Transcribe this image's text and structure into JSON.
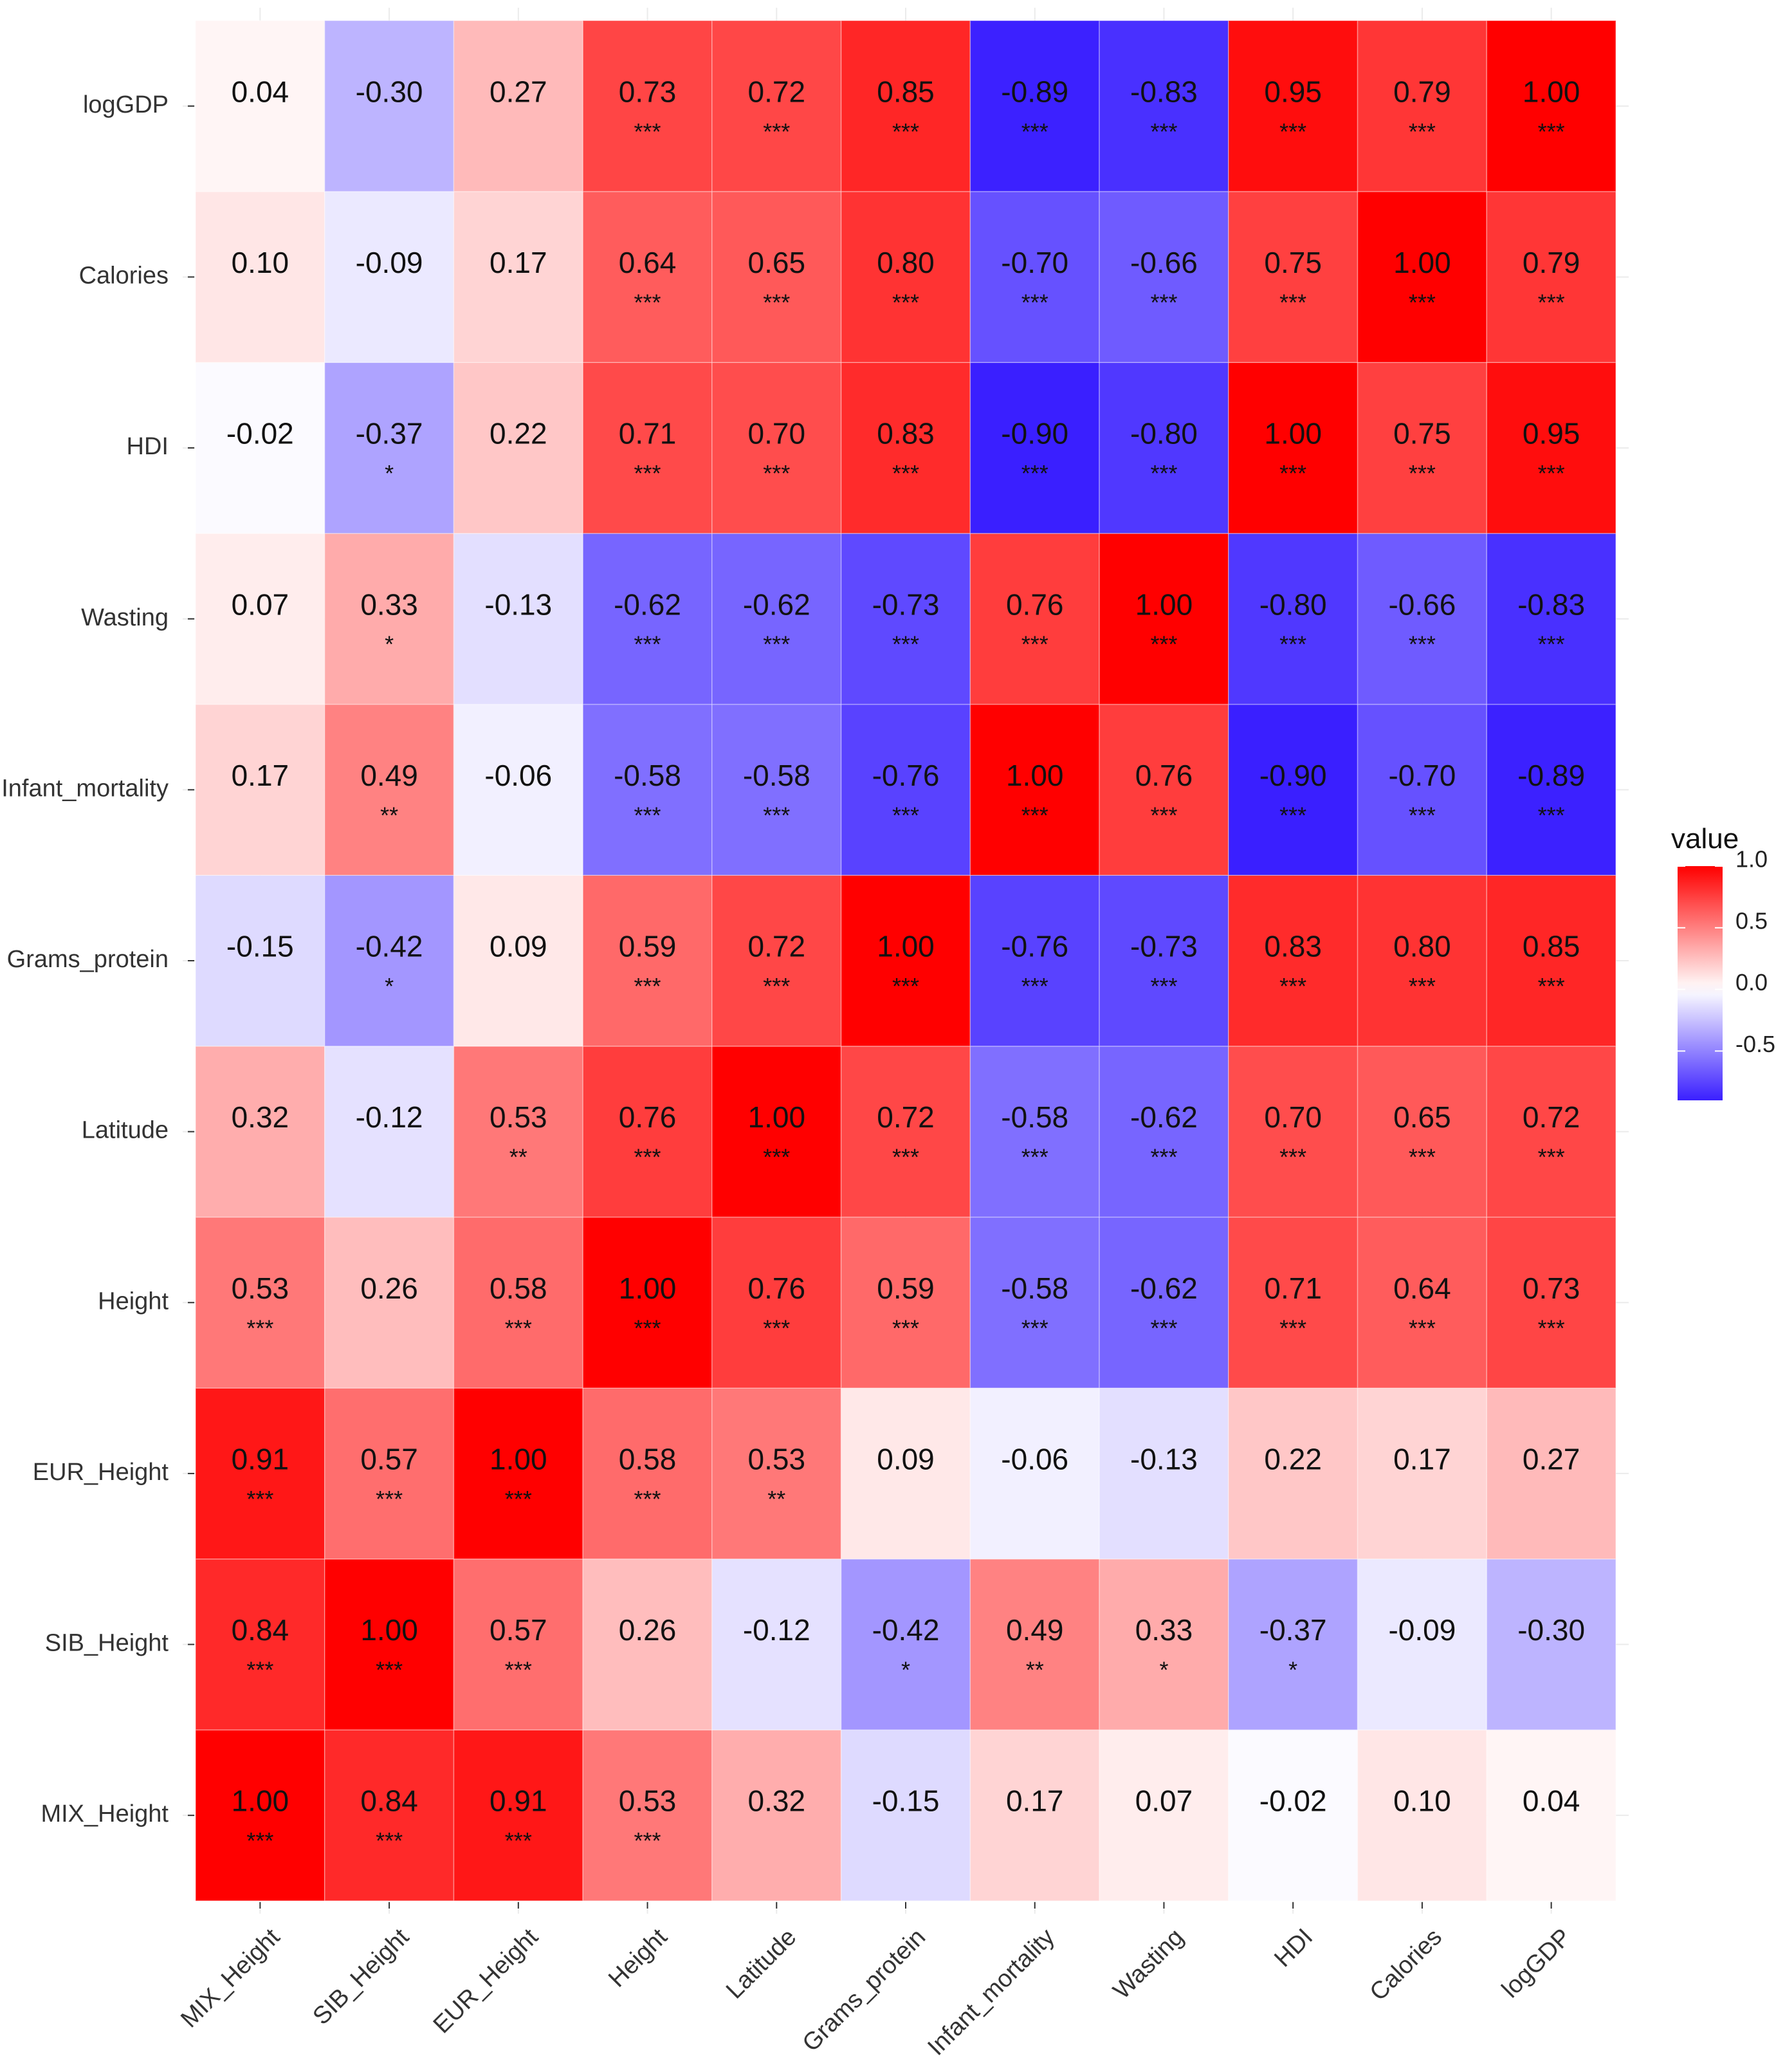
{
  "chart_data": {
    "type": "heatmap",
    "title": "",
    "xlabel": "",
    "ylabel": "",
    "x": [
      "MIX_Height",
      "SIB_Height",
      "EUR_Height",
      "Height",
      "Latitude",
      "Grams_protein",
      "Infant_mortality",
      "Wasting",
      "HDI",
      "Calories",
      "logGDP"
    ],
    "y": [
      "MIX_Height",
      "SIB_Height",
      "EUR_Height",
      "Height",
      "Latitude",
      "Grams_protein",
      "Infant_mortality",
      "Wasting",
      "HDI",
      "Calories",
      "logGDP"
    ],
    "values": [
      [
        1.0,
        0.84,
        0.91,
        0.53,
        0.32,
        -0.15,
        0.17,
        0.07,
        -0.02,
        0.1,
        0.04
      ],
      [
        0.84,
        1.0,
        0.57,
        0.26,
        -0.12,
        -0.42,
        0.49,
        0.33,
        -0.37,
        -0.09,
        -0.3
      ],
      [
        0.91,
        0.57,
        1.0,
        0.58,
        0.53,
        0.09,
        -0.06,
        -0.13,
        0.22,
        0.17,
        0.27
      ],
      [
        0.53,
        0.26,
        0.58,
        1.0,
        0.76,
        0.59,
        -0.58,
        -0.62,
        0.71,
        0.64,
        0.73
      ],
      [
        0.32,
        -0.12,
        0.53,
        0.76,
        1.0,
        0.72,
        -0.58,
        -0.62,
        0.7,
        0.65,
        0.72
      ],
      [
        -0.15,
        -0.42,
        0.09,
        0.59,
        0.72,
        1.0,
        -0.76,
        -0.73,
        0.83,
        0.8,
        0.85
      ],
      [
        0.17,
        0.49,
        -0.06,
        -0.58,
        -0.58,
        -0.76,
        1.0,
        0.76,
        -0.9,
        -0.7,
        -0.89
      ],
      [
        0.07,
        0.33,
        -0.13,
        -0.62,
        -0.62,
        -0.73,
        0.76,
        1.0,
        -0.8,
        -0.66,
        -0.83
      ],
      [
        -0.02,
        -0.37,
        0.22,
        0.71,
        0.7,
        0.83,
        -0.9,
        -0.8,
        1.0,
        0.75,
        0.95
      ],
      [
        0.1,
        -0.09,
        0.17,
        0.64,
        0.65,
        0.8,
        -0.7,
        -0.66,
        0.75,
        1.0,
        0.79
      ],
      [
        0.04,
        -0.3,
        0.27,
        0.73,
        0.72,
        0.85,
        -0.89,
        -0.83,
        0.95,
        0.79,
        1.0
      ]
    ],
    "significance": [
      [
        "***",
        "***",
        "***",
        "***",
        "",
        "",
        "",
        "",
        "",
        "",
        ""
      ],
      [
        "***",
        "***",
        "***",
        "",
        "",
        "*",
        "**",
        "*",
        "*",
        "",
        ""
      ],
      [
        "***",
        "***",
        "***",
        "***",
        "**",
        "",
        "",
        "",
        "",
        "",
        ""
      ],
      [
        "***",
        "",
        "***",
        "***",
        "***",
        "***",
        "***",
        "***",
        "***",
        "***",
        "***"
      ],
      [
        "",
        "",
        "**",
        "***",
        "***",
        "***",
        "***",
        "***",
        "***",
        "***",
        "***"
      ],
      [
        "",
        "*",
        "",
        "***",
        "***",
        "***",
        "***",
        "***",
        "***",
        "***",
        "***"
      ],
      [
        "",
        "**",
        "",
        "***",
        "***",
        "***",
        "***",
        "***",
        "***",
        "***",
        "***"
      ],
      [
        "",
        "*",
        "",
        "***",
        "***",
        "***",
        "***",
        "***",
        "***",
        "***",
        "***"
      ],
      [
        "",
        "*",
        "",
        "***",
        "***",
        "***",
        "***",
        "***",
        "***",
        "***",
        "***"
      ],
      [
        "",
        "",
        "",
        "***",
        "***",
        "***",
        "***",
        "***",
        "***",
        "***",
        "***"
      ],
      [
        "",
        "",
        "",
        "***",
        "***",
        "***",
        "***",
        "***",
        "***",
        "***",
        "***"
      ]
    ],
    "legend": {
      "title": "value",
      "ticks": [
        1.0,
        0.5,
        0.0,
        -0.5
      ],
      "tick_labels": [
        "1.0",
        "0.5",
        "0.0",
        "-0.5"
      ],
      "range": [
        -0.9,
        1.0
      ],
      "placement": "right"
    },
    "colors": {
      "low": "#3a1fff",
      "mid": "#ffffff",
      "high": "#ff0000"
    },
    "grid": true
  }
}
